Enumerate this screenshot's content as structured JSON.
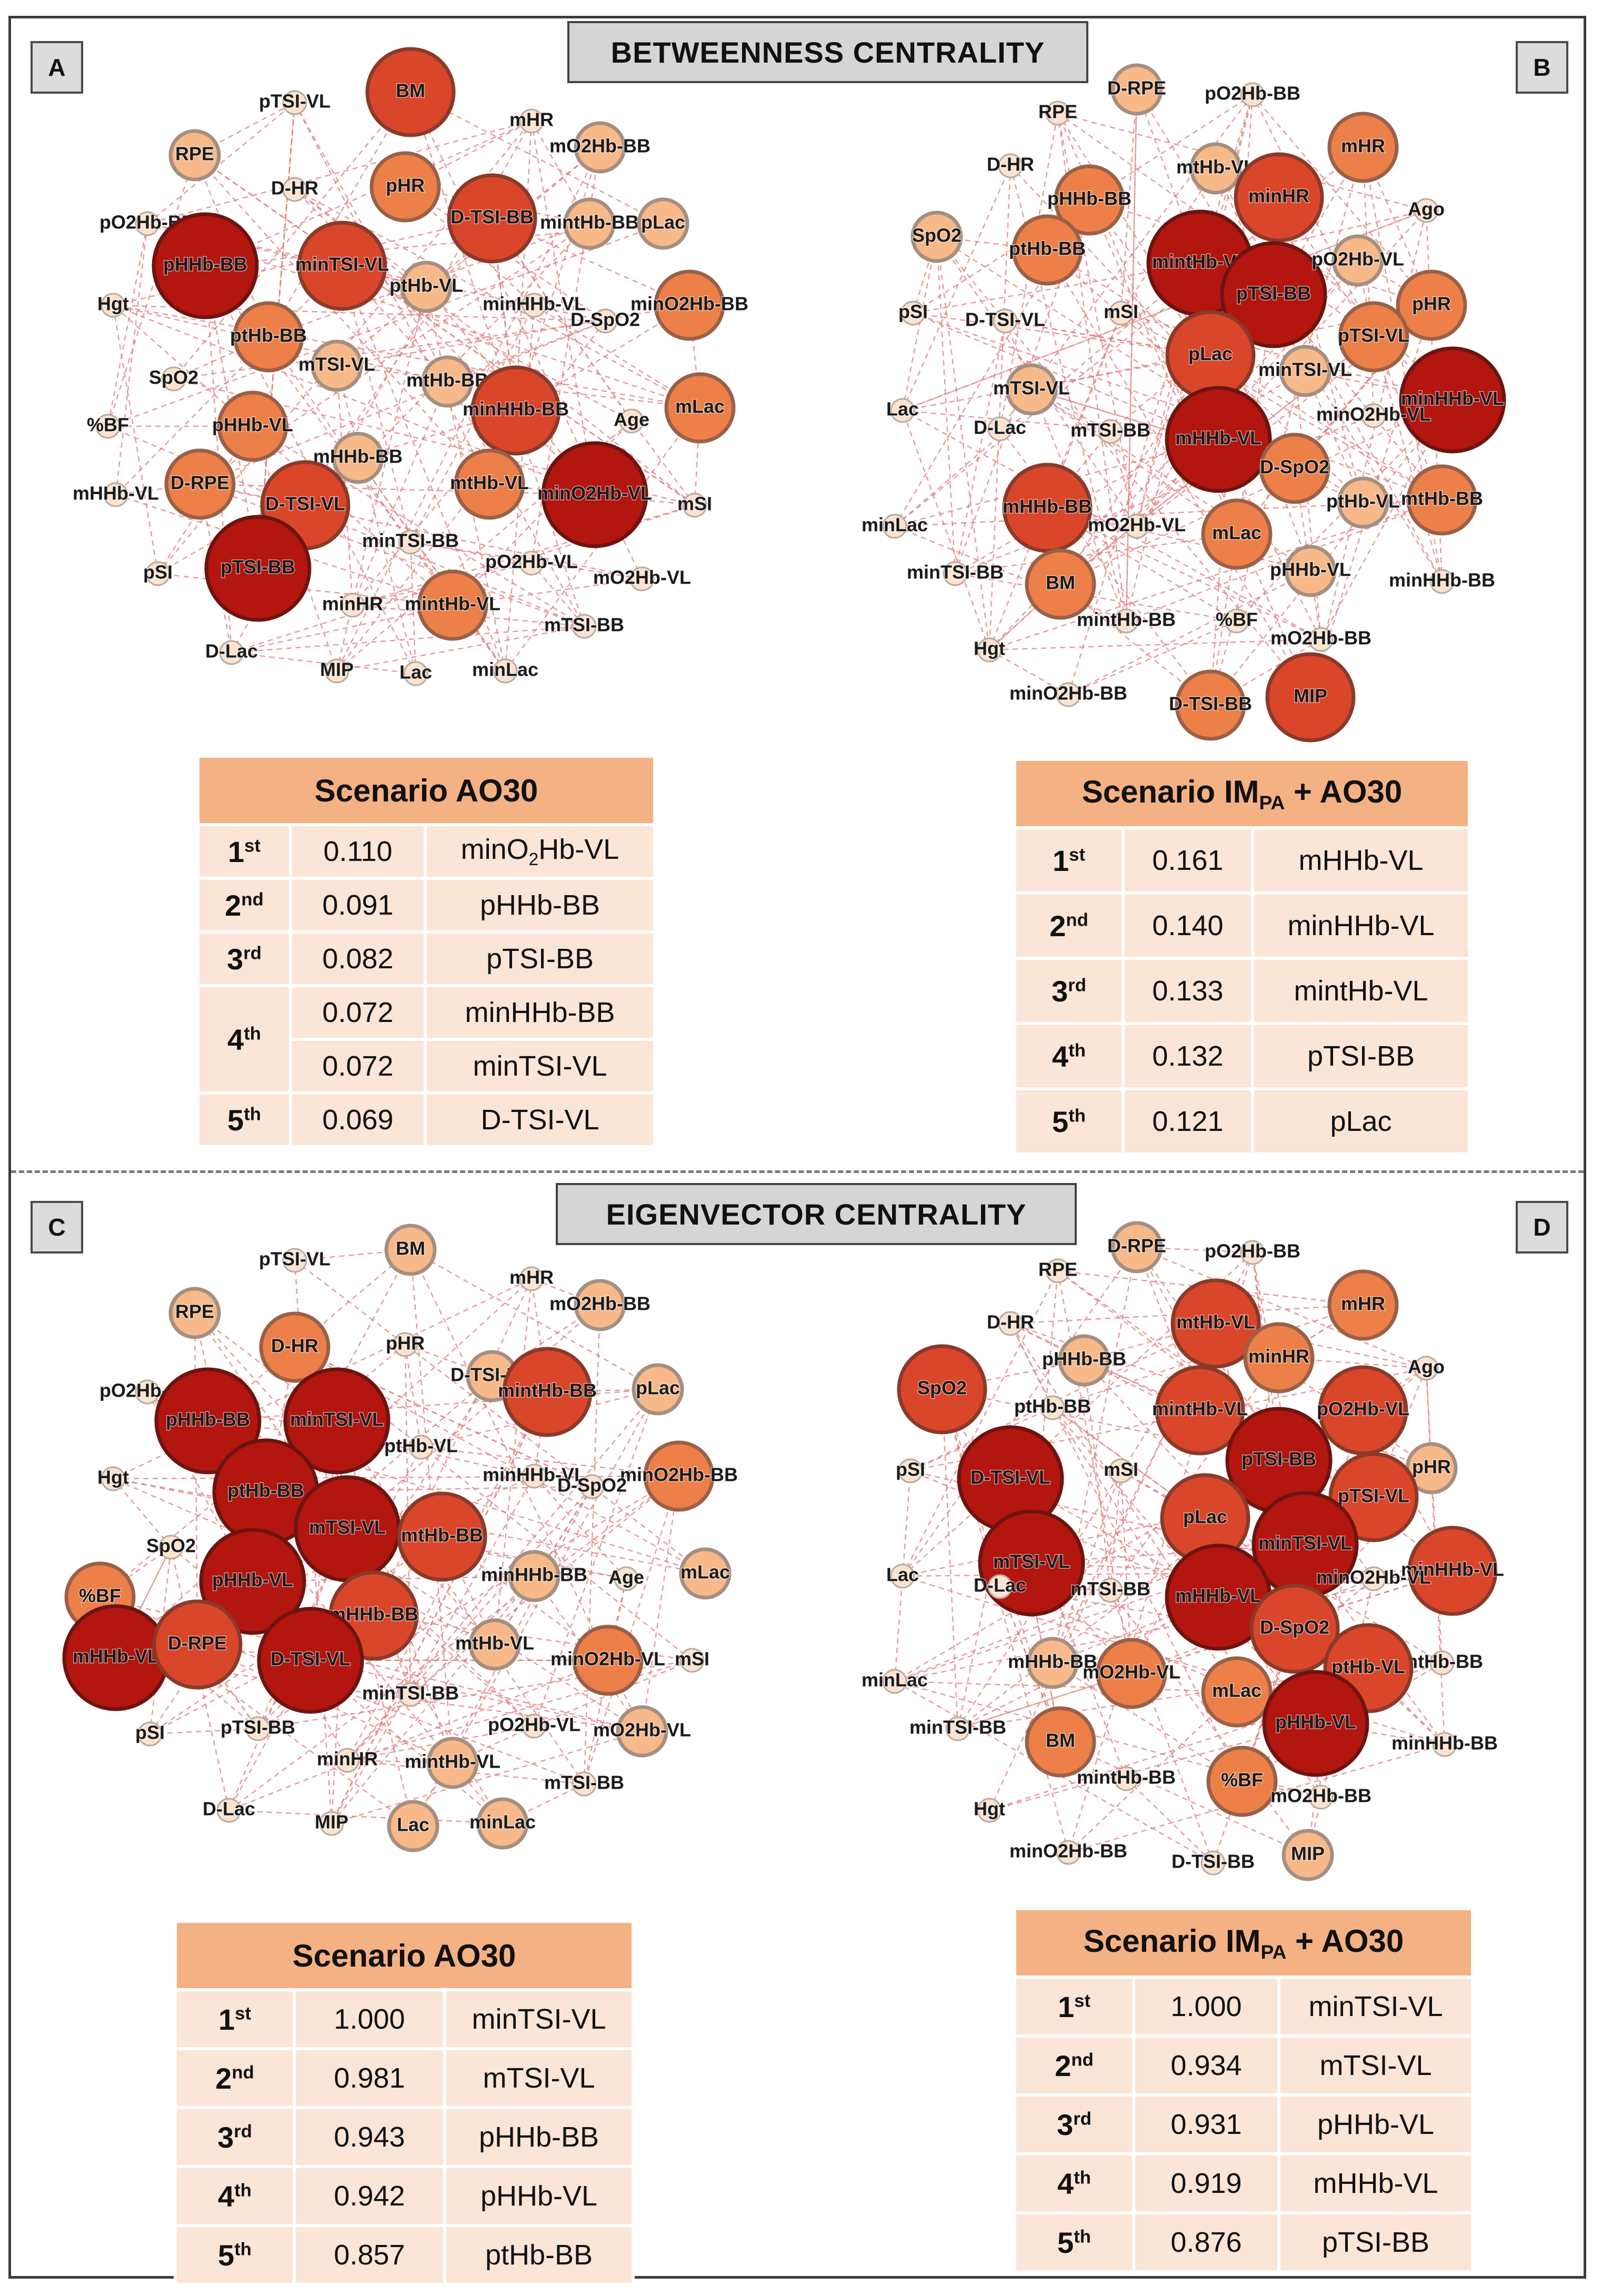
{
  "sections": {
    "betweenness_title": "BETWEENNESS CENTRALITY",
    "eigenvector_title": "EIGENVECTOR CENTRALITY"
  },
  "panel_letters": {
    "a": "A",
    "b": "B",
    "c": "C",
    "d": "D"
  },
  "networks": {
    "a": {
      "nodes": [
        {
          "label": "pTSI-VL",
          "level": 0
        },
        {
          "label": "BM",
          "level": 3
        },
        {
          "label": "mHR",
          "level": 0
        },
        {
          "label": "mO2Hb-BB",
          "level": 1
        },
        {
          "label": "RPE",
          "level": 1
        },
        {
          "label": "D-HR",
          "level": 0
        },
        {
          "label": "pHR",
          "level": 2
        },
        {
          "label": "D-TSI-BB",
          "level": 3
        },
        {
          "label": "pO2Hb-BB",
          "level": 0
        },
        {
          "label": "pHHb-BB",
          "level": 4
        },
        {
          "label": "minTSI-VL",
          "level": 3
        },
        {
          "label": "mintHb-BB",
          "level": 1
        },
        {
          "label": "pLac",
          "level": 1
        },
        {
          "label": "ptHb-VL",
          "level": 1
        },
        {
          "label": "minHHb-VL",
          "level": 0
        },
        {
          "label": "minO2Hb-BB",
          "level": 2
        },
        {
          "label": "D-SpO2",
          "level": 0
        },
        {
          "label": "ptHb-BB",
          "level": 2
        },
        {
          "label": "Hgt",
          "level": 0
        },
        {
          "label": "SpO2",
          "level": 0
        },
        {
          "label": "mTSI-VL",
          "level": 1
        },
        {
          "label": "mtHb-BB",
          "level": 1
        },
        {
          "label": "minHHb-BB",
          "level": 3
        },
        {
          "label": "Age",
          "level": 0
        },
        {
          "label": "mLac",
          "level": 2
        },
        {
          "label": "%BF",
          "level": 0
        },
        {
          "label": "pHHb-VL",
          "level": 2
        },
        {
          "label": "mHHb-BB",
          "level": 1
        },
        {
          "label": "mHHb-VL",
          "level": 0
        },
        {
          "label": "D-RPE",
          "level": 2
        },
        {
          "label": "D-TSI-VL",
          "level": 3
        },
        {
          "label": "mtHb-VL",
          "level": 2
        },
        {
          "label": "minO2Hb-VL",
          "level": 4
        },
        {
          "label": "mSI",
          "level": 0
        },
        {
          "label": "minTSI-BB",
          "level": 0
        },
        {
          "label": "pSI",
          "level": 0
        },
        {
          "label": "pTSI-BB",
          "level": 4
        },
        {
          "label": "pO2Hb-VL",
          "level": 0
        },
        {
          "label": "mO2Hb-VL",
          "level": 0
        },
        {
          "label": "minHR",
          "level": 0
        },
        {
          "label": "mintHb-VL",
          "level": 2
        },
        {
          "label": "mTSI-BB",
          "level": 0
        },
        {
          "label": "D-Lac",
          "level": 0
        },
        {
          "label": "MIP",
          "level": 0
        },
        {
          "label": "Lac",
          "level": 0
        },
        {
          "label": "minLac",
          "level": 0
        }
      ]
    },
    "b": {
      "nodes": [
        {
          "label": "D-RPE",
          "level": 1
        },
        {
          "label": "pO2Hb-BB",
          "level": 0
        },
        {
          "label": "RPE",
          "level": 0
        },
        {
          "label": "mHR",
          "level": 2
        },
        {
          "label": "D-HR",
          "level": 0
        },
        {
          "label": "mtHb-VL",
          "level": 1
        },
        {
          "label": "minHR",
          "level": 3
        },
        {
          "label": "pHHb-BB",
          "level": 2
        },
        {
          "label": "Ago",
          "level": 0
        },
        {
          "label": "SpO2",
          "level": 1
        },
        {
          "label": "ptHb-BB",
          "level": 2
        },
        {
          "label": "mintHb-VL",
          "level": 4
        },
        {
          "label": "pTSI-BB",
          "level": 4
        },
        {
          "label": "pO2Hb-VL",
          "level": 1
        },
        {
          "label": "pSI",
          "level": 0
        },
        {
          "label": "D-TSI-VL",
          "level": 0
        },
        {
          "label": "mSI",
          "level": 0
        },
        {
          "label": "pHR",
          "level": 2
        },
        {
          "label": "pTSI-VL",
          "level": 2
        },
        {
          "label": "pLac",
          "level": 3
        },
        {
          "label": "minTSI-VL",
          "level": 1
        },
        {
          "label": "minHHb-VL",
          "level": 4
        },
        {
          "label": "Lac",
          "level": 0
        },
        {
          "label": "mTSI-VL",
          "level": 1
        },
        {
          "label": "minO2Hb-VL",
          "level": 0
        },
        {
          "label": "D-Lac",
          "level": 0
        },
        {
          "label": "mTSI-BB",
          "level": 0
        },
        {
          "label": "mHHb-VL",
          "level": 4
        },
        {
          "label": "D-SpO2",
          "level": 2
        },
        {
          "label": "mHHb-BB",
          "level": 3
        },
        {
          "label": "mtHb-BB",
          "level": 2
        },
        {
          "label": "minLac",
          "level": 0
        },
        {
          "label": "mO2Hb-VL",
          "level": 0
        },
        {
          "label": "ptHb-VL",
          "level": 1
        },
        {
          "label": "mLac",
          "level": 2
        },
        {
          "label": "minTSI-BB",
          "level": 0
        },
        {
          "label": "BM",
          "level": 2
        },
        {
          "label": "pHHb-VL",
          "level": 1
        },
        {
          "label": "minHHb-BB",
          "level": 0
        },
        {
          "label": "mintHb-BB",
          "level": 0
        },
        {
          "label": "%BF",
          "level": 0
        },
        {
          "label": "mO2Hb-BB",
          "level": 0
        },
        {
          "label": "Hgt",
          "level": 0
        },
        {
          "label": "minO2Hb-BB",
          "level": 0
        },
        {
          "label": "D-TSI-BB",
          "level": 2
        },
        {
          "label": "MIP",
          "level": 3
        }
      ]
    },
    "c": {
      "nodes": [
        {
          "label": "pTSI-VL",
          "level": 0
        },
        {
          "label": "BM",
          "level": 1
        },
        {
          "label": "mHR",
          "level": 0
        },
        {
          "label": "mO2Hb-BB",
          "level": 1
        },
        {
          "label": "RPE",
          "level": 1
        },
        {
          "label": "D-HR",
          "level": 2
        },
        {
          "label": "pHR",
          "level": 0
        },
        {
          "label": "D-TSI-BB",
          "level": 1
        },
        {
          "label": "mintHb-BB",
          "level": 3
        },
        {
          "label": "pLac",
          "level": 1
        },
        {
          "label": "pO2Hb-BB",
          "level": 0
        },
        {
          "label": "pHHb-BB",
          "level": 4
        },
        {
          "label": "minTSI-VL",
          "level": 4
        },
        {
          "label": "ptHb-VL",
          "level": 0
        },
        {
          "label": "minHHb-VL",
          "level": 0
        },
        {
          "label": "minO2Hb-BB",
          "level": 2
        },
        {
          "label": "Hgt",
          "level": 0
        },
        {
          "label": "ptHb-BB",
          "level": 4
        },
        {
          "label": "mTSI-VL",
          "level": 4
        },
        {
          "label": "mtHb-BB",
          "level": 3
        },
        {
          "label": "D-SpO2",
          "level": 0
        },
        {
          "label": "SpO2",
          "level": 0
        },
        {
          "label": "%BF",
          "level": 2
        },
        {
          "label": "pHHb-VL",
          "level": 4
        },
        {
          "label": "mHHb-BB",
          "level": 3
        },
        {
          "label": "minHHb-BB",
          "level": 1
        },
        {
          "label": "Age",
          "level": 0
        },
        {
          "label": "mLac",
          "level": 1
        },
        {
          "label": "mHHb-VL",
          "level": 4
        },
        {
          "label": "D-RPE",
          "level": 3
        },
        {
          "label": "D-TSI-VL",
          "level": 4
        },
        {
          "label": "mtHb-VL",
          "level": 1
        },
        {
          "label": "minO2Hb-VL",
          "level": 2
        },
        {
          "label": "mSI",
          "level": 0
        },
        {
          "label": "minTSI-BB",
          "level": 0
        },
        {
          "label": "pO2Hb-VL",
          "level": 0
        },
        {
          "label": "pSI",
          "level": 0
        },
        {
          "label": "pTSI-BB",
          "level": 0
        },
        {
          "label": "mO2Hb-VL",
          "level": 1
        },
        {
          "label": "minHR",
          "level": 0
        },
        {
          "label": "mintHb-VL",
          "level": 1
        },
        {
          "label": "mTSI-BB",
          "level": 0
        },
        {
          "label": "D-Lac",
          "level": 0
        },
        {
          "label": "MIP",
          "level": 0
        },
        {
          "label": "Lac",
          "level": 1
        },
        {
          "label": "minLac",
          "level": 1
        }
      ]
    },
    "d": {
      "nodes": [
        {
          "label": "D-RPE",
          "level": 1
        },
        {
          "label": "pO2Hb-BB",
          "level": 0
        },
        {
          "label": "RPE",
          "level": 0
        },
        {
          "label": "mHR",
          "level": 2
        },
        {
          "label": "D-HR",
          "level": 0
        },
        {
          "label": "mtHb-VL",
          "level": 3
        },
        {
          "label": "minHR",
          "level": 2
        },
        {
          "label": "pHHb-BB",
          "level": 1
        },
        {
          "label": "Ago",
          "level": 0
        },
        {
          "label": "SpO2",
          "level": 3
        },
        {
          "label": "ptHb-BB",
          "level": 0
        },
        {
          "label": "mintHb-VL",
          "level": 3
        },
        {
          "label": "pTSI-BB",
          "level": 4
        },
        {
          "label": "pO2Hb-VL",
          "level": 3
        },
        {
          "label": "pSI",
          "level": 0
        },
        {
          "label": "D-TSI-VL",
          "level": 4
        },
        {
          "label": "mSI",
          "level": 0
        },
        {
          "label": "pHR",
          "level": 1
        },
        {
          "label": "pTSI-VL",
          "level": 3
        },
        {
          "label": "pLac",
          "level": 3
        },
        {
          "label": "minTSI-VL",
          "level": 4
        },
        {
          "label": "minHHb-VL",
          "level": 3
        },
        {
          "label": "Lac",
          "level": 0
        },
        {
          "label": "mTSI-VL",
          "level": 4
        },
        {
          "label": "minO2Hb-VL",
          "level": 0
        },
        {
          "label": "D-Lac",
          "level": 0
        },
        {
          "label": "mTSI-BB",
          "level": 0
        },
        {
          "label": "mHHb-VL",
          "level": 4
        },
        {
          "label": "D-SpO2",
          "level": 3
        },
        {
          "label": "mHHb-BB",
          "level": 1
        },
        {
          "label": "mtHb-BB",
          "level": 0
        },
        {
          "label": "minLac",
          "level": 0
        },
        {
          "label": "mO2Hb-VL",
          "level": 2
        },
        {
          "label": "ptHb-VL",
          "level": 3
        },
        {
          "label": "mLac",
          "level": 2
        },
        {
          "label": "minTSI-BB",
          "level": 0
        },
        {
          "label": "BM",
          "level": 2
        },
        {
          "label": "pHHb-VL",
          "level": 4
        },
        {
          "label": "minHHb-BB",
          "level": 0
        },
        {
          "label": "mintHb-BB",
          "level": 0
        },
        {
          "label": "%BF",
          "level": 2
        },
        {
          "label": "mO2Hb-BB",
          "level": 0
        },
        {
          "label": "Hgt",
          "level": 0
        },
        {
          "label": "minO2Hb-BB",
          "level": 0
        },
        {
          "label": "D-TSI-BB",
          "level": 0
        },
        {
          "label": "MIP",
          "level": 1
        }
      ]
    }
  },
  "tables": {
    "a": {
      "title": "Scenario AO30",
      "rows": [
        {
          "ord": "1",
          "suf": "st",
          "value": "0.110",
          "var_pre": "minO",
          "var_sub": "2",
          "var_post": "Hb-VL"
        },
        {
          "ord": "2",
          "suf": "nd",
          "value": "0.091",
          "var": "pHHb-BB"
        },
        {
          "ord": "3",
          "suf": "rd",
          "value": "0.082",
          "var": "pTSI-BB"
        },
        {
          "ord": "4",
          "suf": "th",
          "value": "0.072",
          "var": "minHHb-BB"
        },
        {
          "value": "0.072",
          "var": "minTSI-VL"
        },
        {
          "ord": "5",
          "suf": "th",
          "value": "0.069",
          "var": "D-TSI-VL"
        }
      ]
    },
    "b": {
      "title_pre": "Scenario IM",
      "title_sub": "PA",
      "title_post": " + AO30",
      "rows": [
        {
          "ord": "1",
          "suf": "st",
          "value": "0.161",
          "var": "mHHb-VL"
        },
        {
          "ord": "2",
          "suf": "nd",
          "value": "0.140",
          "var": "minHHb-VL"
        },
        {
          "ord": "3",
          "suf": "rd",
          "value": "0.133",
          "var": "mintHb-VL"
        },
        {
          "ord": "4",
          "suf": "th",
          "value": "0.132",
          "var": "pTSI-BB"
        },
        {
          "ord": "5",
          "suf": "th",
          "value": "0.121",
          "var": "pLac"
        }
      ]
    },
    "c": {
      "title": "Scenario AO30",
      "rows": [
        {
          "ord": "1",
          "suf": "st",
          "value": "1.000",
          "var": "minTSI-VL"
        },
        {
          "ord": "2",
          "suf": "nd",
          "value": "0.981",
          "var": "mTSI-VL"
        },
        {
          "ord": "3",
          "suf": "rd",
          "value": "0.943",
          "var": "pHHb-BB"
        },
        {
          "ord": "4",
          "suf": "th",
          "value": "0.942",
          "var": "pHHb-VL"
        },
        {
          "ord": "5",
          "suf": "th",
          "value": "0.857",
          "var": "ptHb-BB"
        }
      ]
    },
    "d": {
      "title_pre": "Scenario IM",
      "title_sub": "PA",
      "title_post": " + AO30",
      "rows": [
        {
          "ord": "1",
          "suf": "st",
          "value": "1.000",
          "var": "minTSI-VL"
        },
        {
          "ord": "2",
          "suf": "nd",
          "value": "0.934",
          "var": "mTSI-VL"
        },
        {
          "ord": "3",
          "suf": "rd",
          "value": "0.931",
          "var": "pHHb-VL"
        },
        {
          "ord": "4",
          "suf": "th",
          "value": "0.919",
          "var": "mHHb-VL"
        },
        {
          "ord": "5",
          "suf": "th",
          "value": "0.876",
          "var": "pTSI-BB"
        }
      ]
    }
  },
  "colors": {
    "level_fill": [
      "#fbe3cf",
      "#f7b989",
      "#ec8048",
      "#d9462a",
      "#b3150f"
    ],
    "level_stroke": [
      "#b8aaa0",
      "#a58f80",
      "#9a6048",
      "#8a3a2a",
      "#6e1410"
    ],
    "edge": "#e07c7c",
    "table_header": "#f4b183",
    "table_cell": "#fbe5d6"
  }
}
